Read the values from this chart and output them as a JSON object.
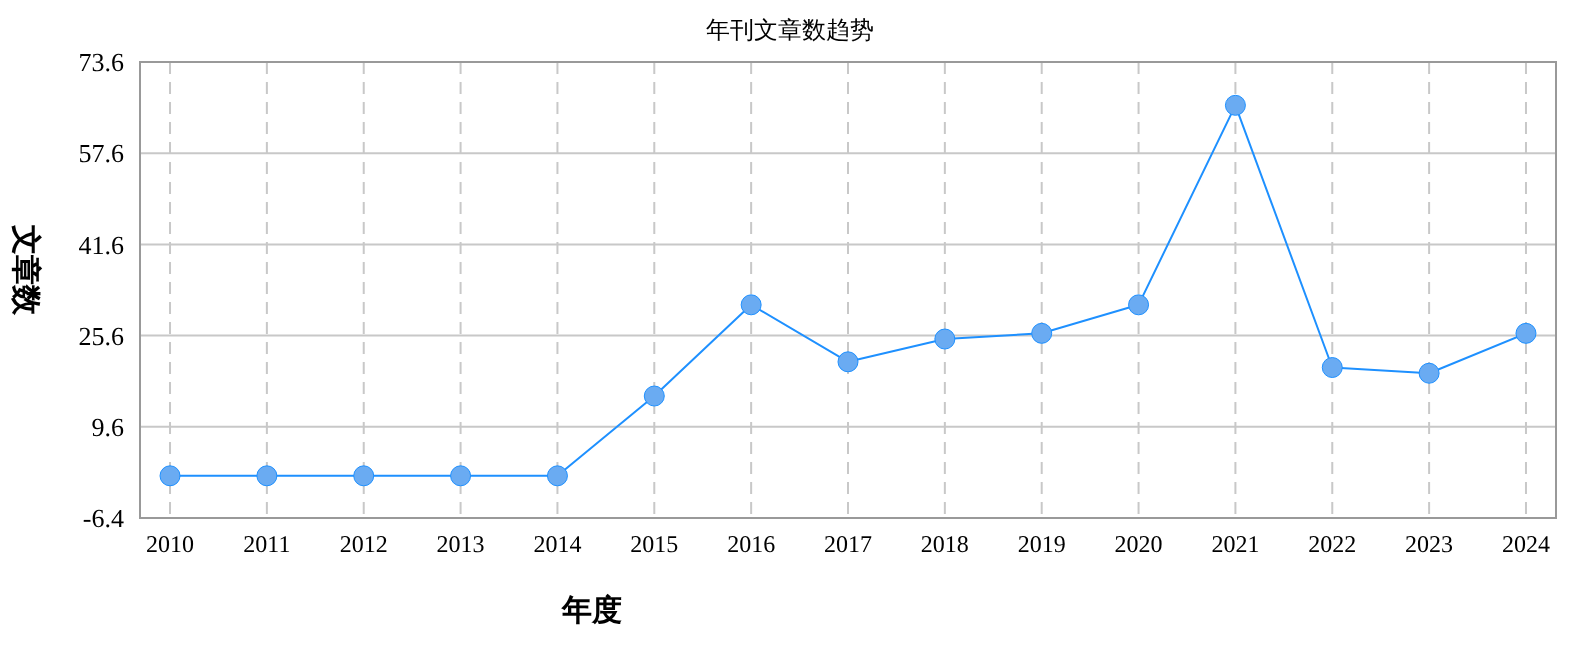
{
  "chart_data": {
    "type": "line",
    "title": "年刊文章数趋势",
    "xlabel": "年度",
    "ylabel": "文章数",
    "categories": [
      "2010",
      "2011",
      "2012",
      "2013",
      "2014",
      "2015",
      "2016",
      "2017",
      "2018",
      "2019",
      "2020",
      "2021",
      "2022",
      "2023",
      "2024"
    ],
    "series": [
      {
        "color": "#1e90ff",
        "values": [
          1,
          1,
          1,
          1,
          1,
          15,
          31,
          21,
          25,
          26,
          31,
          66,
          20,
          19,
          26
        ]
      }
    ],
    "ylim": [
      -6.4,
      73.6
    ],
    "yticks": [
      -6.4,
      9.6,
      25.6,
      41.6,
      57.6,
      73.6
    ],
    "grid": true,
    "marker": "circle"
  }
}
